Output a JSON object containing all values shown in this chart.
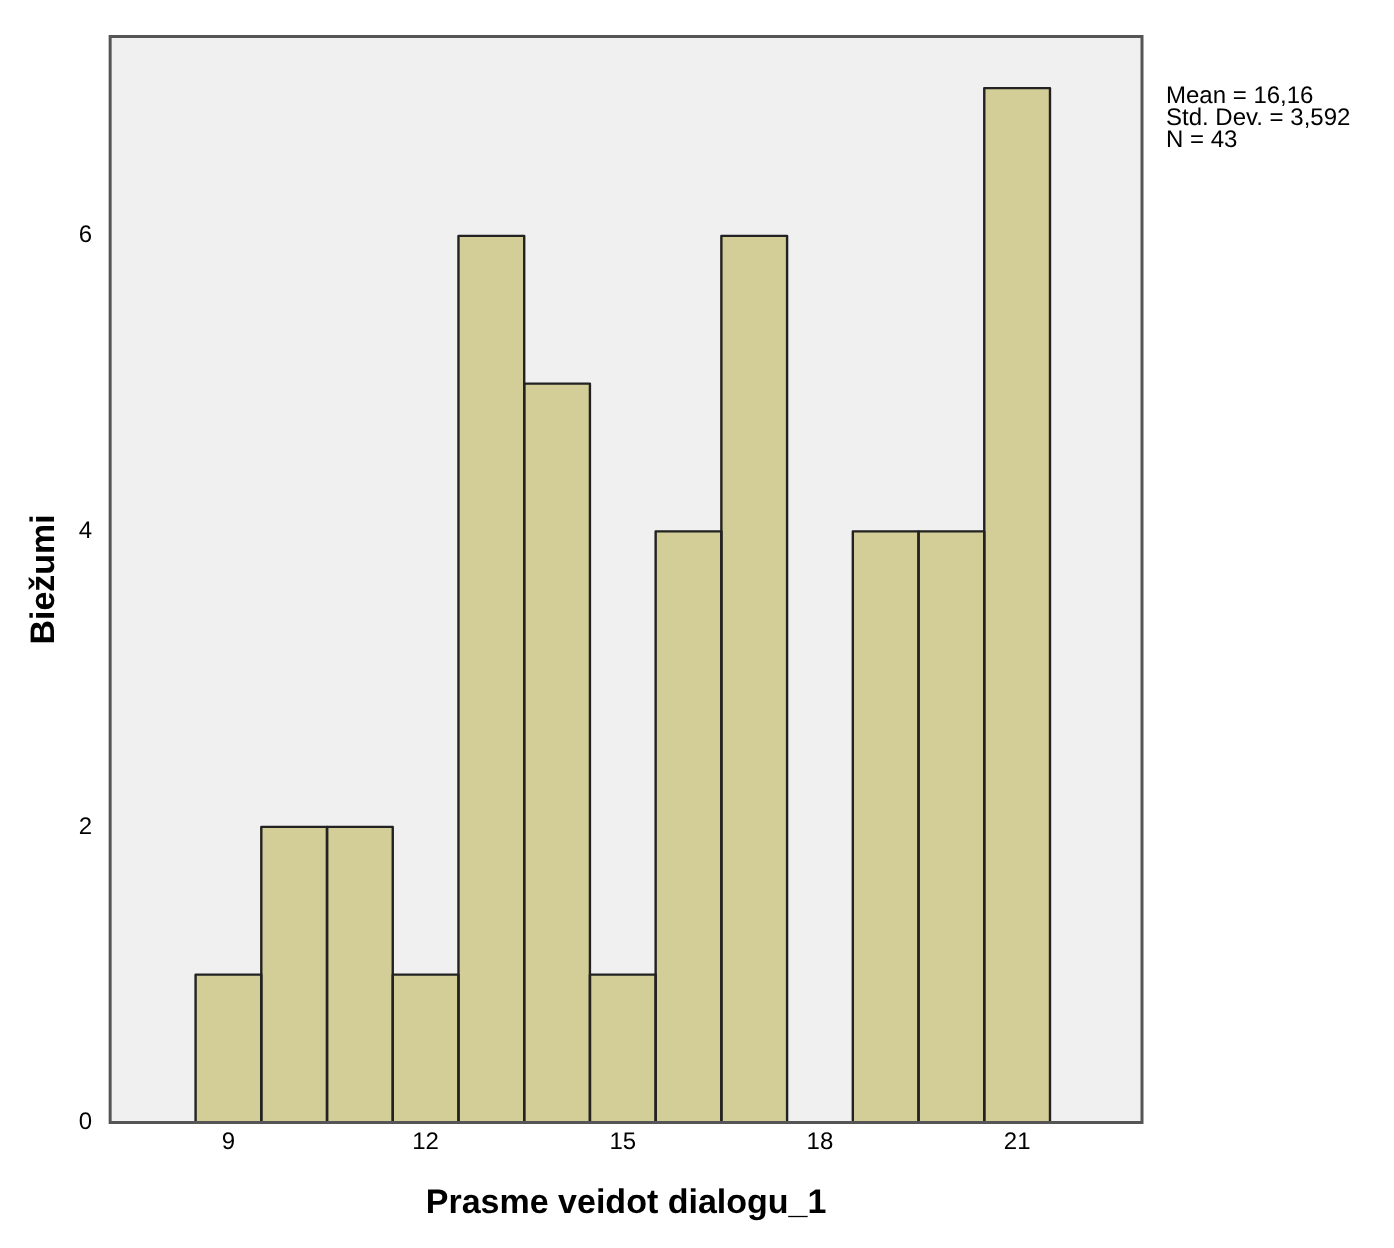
{
  "chart_data": {
    "type": "histogram",
    "xlabel": "Prasme veidot dialogu_1",
    "ylabel": "Biežumi",
    "bins": [
      8.5,
      9.5,
      10.5,
      11.5,
      12.5,
      13.5,
      14.5,
      15.5,
      16.5,
      17.5,
      18.5,
      19.5,
      20.5,
      21.5
    ],
    "values": [
      1,
      2,
      2,
      1,
      6,
      5,
      1,
      4,
      6,
      0,
      4,
      4,
      7
    ],
    "color": "#d3ce98",
    "xlim": [
      7.2,
      22.9
    ],
    "xticks": [
      9,
      12,
      15,
      18,
      21
    ],
    "ylim": [
      0,
      7.35
    ],
    "yticks": [
      0,
      2,
      4,
      6
    ],
    "grid": false,
    "legend": false,
    "annotations": [
      "Mean = 16,16",
      "Std. Dev. = 3,592",
      "N = 43"
    ]
  }
}
